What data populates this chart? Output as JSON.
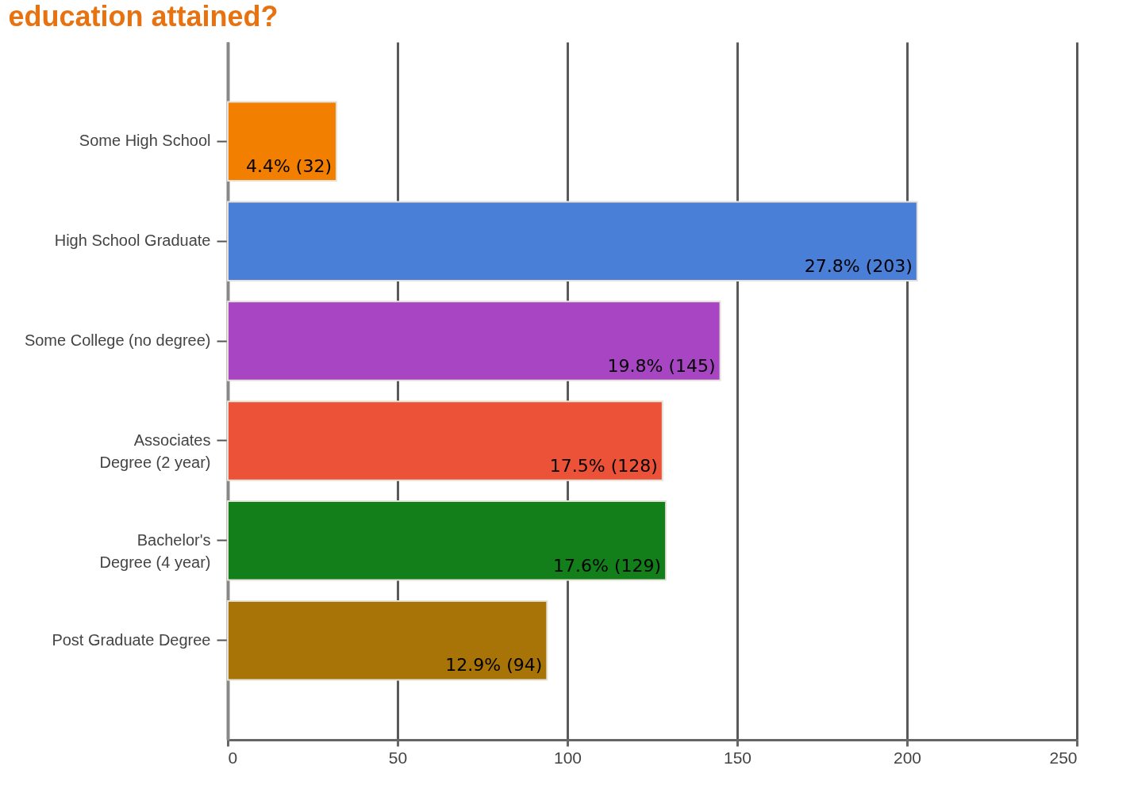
{
  "chart_data": {
    "type": "bar",
    "orientation": "horizontal",
    "title": "education attained?",
    "categories": [
      "Some High School",
      "High School Graduate",
      "Some College (no degree)",
      "Associates Degree (2 year)",
      "Bachelor's Degree (4 year)",
      "Post Graduate Degree"
    ],
    "values": [
      32,
      203,
      145,
      128,
      129,
      94
    ],
    "colors": [
      "#f27f00",
      "#4a7fd8",
      "#a845c2",
      "#ec5238",
      "#137f1a",
      "#a87408"
    ],
    "value_labels": [
      "4.4% (32)",
      "27.8% (203)",
      "19.8% (145)",
      "17.5% (128)",
      "17.6% (129)",
      "12.9% (94)"
    ],
    "xlim": [
      0,
      250
    ],
    "xticks": [
      0,
      50,
      100,
      150,
      200,
      250
    ],
    "grid": "x"
  }
}
